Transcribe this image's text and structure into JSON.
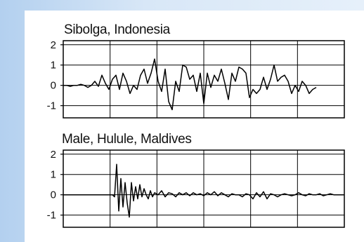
{
  "chart_data": [
    {
      "type": "line",
      "title": "Sibolga, Indonesia",
      "xlabel": "",
      "ylabel": "",
      "ylim": [
        -1.6,
        2.2
      ],
      "xlim": [
        0,
        400
      ],
      "yticks": [
        2,
        1,
        0,
        -1
      ],
      "ytick_labels": [
        "2",
        "1",
        "0",
        "-1"
      ],
      "x_gridlines": 5,
      "grid": true,
      "series": [
        {
          "x": [
            0,
            5,
            10,
            15,
            20,
            25,
            30,
            35,
            40,
            45,
            50,
            55,
            60,
            65,
            70,
            75,
            80,
            85,
            90,
            95,
            100,
            105,
            110,
            115,
            120,
            125,
            130,
            135,
            140,
            145,
            150,
            155,
            160,
            165,
            170,
            175,
            180,
            185,
            190,
            195,
            200,
            205,
            210,
            215,
            220,
            225,
            230,
            235,
            240,
            245,
            250,
            255,
            260,
            265,
            270,
            275,
            280,
            285,
            290,
            295,
            300,
            305,
            310,
            315,
            320,
            325,
            330,
            335,
            340,
            345,
            350,
            355,
            360
          ],
          "y": [
            0,
            0,
            -0.05,
            0,
            0,
            0.05,
            0,
            -0.1,
            0,
            0.2,
            -0.05,
            0.5,
            0.1,
            -0.2,
            0.3,
            0.5,
            -0.2,
            0.6,
            0.2,
            -0.4,
            0,
            -0.2,
            0.5,
            0.8,
            0.1,
            0.6,
            1.3,
            0.2,
            -0.3,
            0.8,
            -0.8,
            -1.2,
            0.2,
            -0.3,
            1.0,
            0.9,
            0.3,
            0.5,
            -0.3,
            0.6,
            -0.9,
            0.6,
            -0.1,
            0.5,
            0.2,
            0.8,
            0.1,
            -0.7,
            0.6,
            0.2,
            0.9,
            0.8,
            0.6,
            -0.6,
            -0.2,
            -0.4,
            -0.2,
            0.4,
            -0.2,
            0.3,
            1.0,
            0.2,
            0.4,
            0.5,
            0.2,
            -0.4,
            0,
            -0.3,
            0.2,
            0,
            -0.4,
            -0.2,
            -0.1
          ]
        }
      ]
    },
    {
      "type": "line",
      "title": "Male, Hulule, Maldives",
      "xlabel": "",
      "ylabel": "",
      "ylim": [
        -1.6,
        2.2
      ],
      "xlim": [
        0,
        400
      ],
      "yticks": [
        2,
        1,
        0,
        -1
      ],
      "ytick_labels": [
        "2",
        "1",
        "0",
        "-1"
      ],
      "x_gridlines": 5,
      "grid": true,
      "series": [
        {
          "x": [
            0,
            20,
            40,
            60,
            70,
            73,
            76,
            79,
            82,
            85,
            88,
            91,
            94,
            97,
            100,
            103,
            106,
            109,
            112,
            115,
            118,
            121,
            124,
            127,
            130,
            135,
            140,
            145,
            150,
            155,
            160,
            165,
            170,
            175,
            180,
            185,
            190,
            195,
            200,
            205,
            210,
            215,
            220,
            225,
            230,
            235,
            240,
            245,
            250,
            255,
            260,
            265,
            270,
            275,
            280,
            285,
            290,
            295,
            300,
            305,
            310,
            315,
            320,
            325,
            330,
            335,
            340,
            345,
            350,
            355,
            360,
            365,
            370,
            375,
            380,
            385,
            390,
            395,
            400
          ],
          "y": [
            0,
            0,
            0,
            0,
            0,
            -0.1,
            1.5,
            -0.8,
            0.8,
            -0.6,
            0.6,
            -0.4,
            -1.1,
            0.6,
            -0.3,
            0.4,
            -0.2,
            0.5,
            -0.1,
            0.3,
            0,
            -0.2,
            0.2,
            -0.1,
            0.1,
            0,
            0.2,
            -0.1,
            0.1,
            0.05,
            -0.1,
            0.1,
            0,
            0.1,
            -0.05,
            0.1,
            0,
            0.05,
            -0.05,
            0.1,
            0,
            0.15,
            -0.05,
            0.1,
            0,
            -0.1,
            0.05,
            0,
            0,
            -0.1,
            0.05,
            0,
            -0.2,
            0.1,
            -0.1,
            0.15,
            -0.2,
            0.05,
            0,
            -0.1,
            0,
            0.05,
            0,
            -0.05,
            0,
            0.1,
            0,
            -0.05,
            0.05,
            0,
            0,
            0.05,
            -0.05,
            0,
            0.05,
            0,
            0,
            0,
            0
          ]
        }
      ]
    }
  ]
}
